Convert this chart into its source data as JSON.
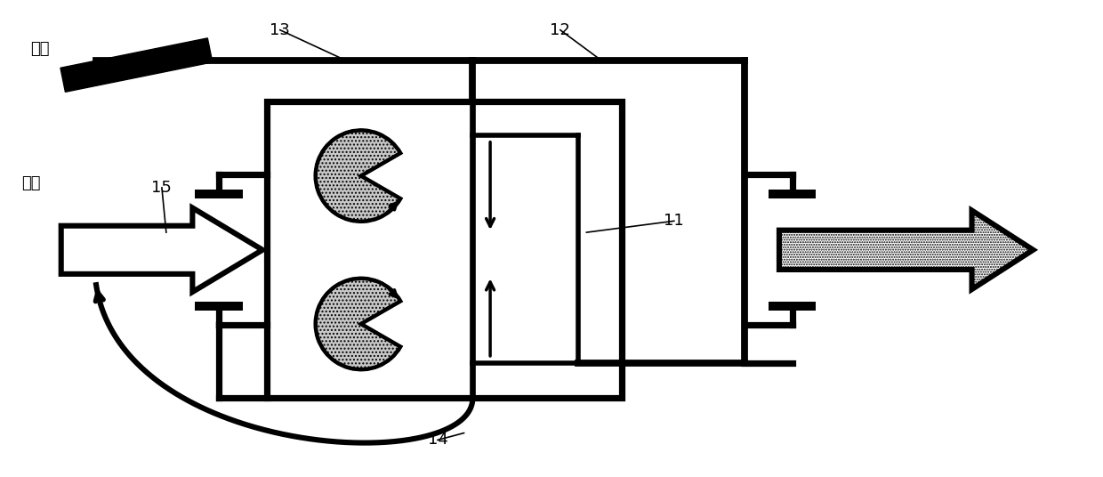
{
  "bg_color": "#ffffff",
  "line_color": "#000000",
  "lw": 4.0,
  "fig_w": 12.4,
  "fig_h": 5.36,
  "text_h2": "氢气",
  "text_air": "空气",
  "labels": [
    "13",
    "12",
    "11",
    "14",
    "15"
  ]
}
